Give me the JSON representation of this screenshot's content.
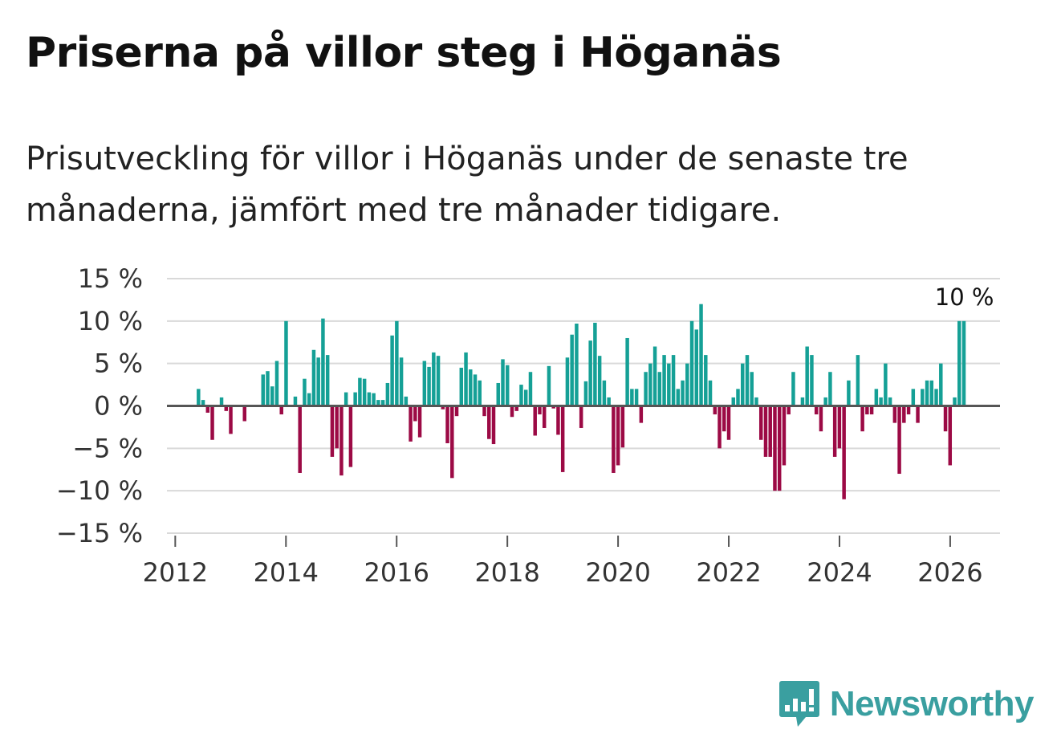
{
  "title": "Priserna på villor steg i Höganäs",
  "subtitle": "Prisutveckling för villor i Höganäs under de senaste tre månaderna, jämfört med tre månader tidigare.",
  "brand": {
    "name": "Newsworthy",
    "color": "#3a9fa0"
  },
  "colors": {
    "positive": "#15a096",
    "negative": "#9c0a45",
    "zero_line": "#555555",
    "grid": "#d9d9d9"
  },
  "chart_data": {
    "type": "bar",
    "title": "Priserna på villor steg i Höganäs",
    "xlabel": "",
    "ylabel": "",
    "ylim": [
      -15,
      15
    ],
    "xlim": [
      2011.85,
      2026.9
    ],
    "y_ticks": [
      15,
      10,
      5,
      0,
      -5,
      -10,
      -15
    ],
    "y_tick_labels": [
      "15 %",
      "10 %",
      "5 %",
      "0 %",
      "−5 %",
      "−10 %",
      "−15 %"
    ],
    "x_ticks": [
      2012,
      2014,
      2016,
      2018,
      2020,
      2022,
      2024,
      2026
    ],
    "x_tick_labels": [
      "2012",
      "2014",
      "2016",
      "2018",
      "2020",
      "2022",
      "2024",
      "2026"
    ],
    "grid": true,
    "start": 2012.42,
    "step": 0.0833,
    "annotation": {
      "label": "10 %",
      "x": 2026.17,
      "y": 10
    },
    "values": [
      2,
      0.7,
      -0.8,
      -4,
      0,
      1,
      -0.6,
      -3.3,
      0,
      0,
      -1.8,
      0,
      0,
      0,
      3.7,
      4.1,
      2.3,
      5.3,
      -1,
      10,
      0,
      1.1,
      -7.9,
      3.2,
      1.5,
      6.6,
      5.7,
      10.3,
      6,
      -6,
      -5,
      -8.2,
      1.6,
      -7.2,
      1.6,
      3.3,
      3.2,
      1.6,
      1.5,
      0.7,
      0.7,
      2.7,
      8.3,
      10,
      5.7,
      1.1,
      -4.2,
      -1.8,
      -3.7,
      5.3,
      4.6,
      6.3,
      5.9,
      -0.4,
      -4.4,
      -8.5,
      -1.2,
      4.5,
      6.3,
      4.3,
      3.7,
      3,
      -1.2,
      -3.9,
      -4.5,
      2.7,
      5.5,
      4.8,
      -1.3,
      -0.6,
      2.5,
      1.9,
      4,
      -3.5,
      -1,
      -2.6,
      4.7,
      -0.3,
      -3.4,
      -7.8,
      5.7,
      8.4,
      9.7,
      -2.6,
      2.9,
      7.7,
      9.8,
      5.9,
      3,
      1,
      -7.9,
      -7,
      -4.9,
      8,
      2,
      2,
      -2,
      4,
      5,
      7,
      4,
      6,
      5,
      6,
      2,
      3,
      5,
      10,
      9,
      12,
      6,
      3,
      -1,
      -5,
      -3,
      -4,
      1,
      2,
      5,
      6,
      4,
      1,
      -4,
      -6,
      -6,
      -10,
      -10,
      -7,
      -1,
      4,
      0,
      1,
      7,
      6,
      -1,
      -3,
      1,
      4,
      -6,
      -5,
      -11,
      3,
      0,
      6,
      -3,
      -1,
      -1,
      2,
      1,
      5,
      1,
      -2,
      -8,
      -2,
      -1,
      2,
      -2,
      2,
      3,
      3,
      2,
      5,
      -3,
      -7,
      1,
      10,
      10
    ]
  }
}
